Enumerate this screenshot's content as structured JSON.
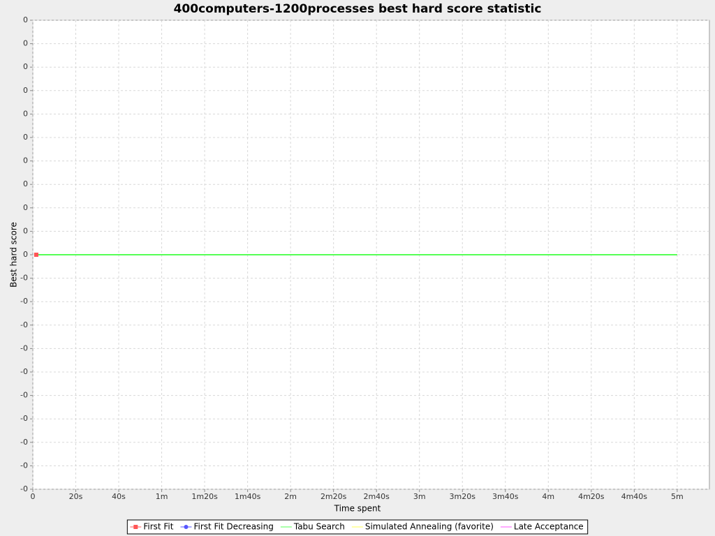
{
  "chart_data": {
    "type": "line",
    "title": "400computers-1200processes best hard score statistic",
    "x_label": "Time spent",
    "y_label": "Best hard score",
    "xlim": [
      0,
      315000
    ],
    "xticks": [
      0,
      {
        "value": 20000,
        "label": "20s"
      },
      {
        "value": 40000,
        "label": "40s"
      },
      {
        "value": 60000,
        "label": "1m"
      },
      {
        "value": 80000,
        "label": "1m20s"
      },
      {
        "value": 100000,
        "label": "1m40s"
      },
      {
        "value": 120000,
        "label": "2m"
      },
      {
        "value": 140000,
        "label": "2m20s"
      },
      {
        "value": 160000,
        "label": "2m40s"
      },
      {
        "value": 180000,
        "label": "3m"
      },
      {
        "value": 200000,
        "label": "3m20s"
      },
      {
        "value": 220000,
        "label": "3m40s"
      },
      {
        "value": 240000,
        "label": "4m"
      },
      {
        "value": 260000,
        "label": "4m20s"
      },
      {
        "value": 280000,
        "label": "4m40s"
      },
      {
        "value": 300000,
        "label": "5m"
      }
    ],
    "ylim": [
      -0.1,
      0.1
    ],
    "yticks": [
      {
        "value": 0.1,
        "label": "0"
      },
      {
        "value": 0.09,
        "label": "0"
      },
      {
        "value": 0.08,
        "label": "0"
      },
      {
        "value": 0.07,
        "label": "0"
      },
      {
        "value": 0.06,
        "label": "0"
      },
      {
        "value": 0.05,
        "label": "0"
      },
      {
        "value": 0.04,
        "label": "0"
      },
      {
        "value": 0.03,
        "label": "0"
      },
      {
        "value": 0.02,
        "label": "0"
      },
      {
        "value": 0.01,
        "label": "0"
      },
      0,
      {
        "value": -0.01,
        "label": "-0"
      },
      {
        "value": -0.02,
        "label": "-0"
      },
      {
        "value": -0.03,
        "label": "-0"
      },
      {
        "value": -0.04,
        "label": "-0"
      },
      {
        "value": -0.05,
        "label": "-0"
      },
      {
        "value": -0.06,
        "label": "-0"
      },
      {
        "value": -0.07,
        "label": "-0"
      },
      {
        "value": -0.08,
        "label": "-0"
      },
      {
        "value": -0.09,
        "label": "-0"
      },
      {
        "value": -0.1,
        "label": "-0"
      }
    ],
    "grid": true,
    "legend": "bottom",
    "series": [
      {
        "name": "First Fit",
        "color": "#ff5555",
        "marker": "square",
        "x": [
          1600
        ],
        "values": [
          0
        ]
      },
      {
        "name": "First Fit Decreasing",
        "color": "#5555ff",
        "marker": "circle",
        "x": [
          1600
        ],
        "values": [
          0
        ]
      },
      {
        "name": "Tabu Search",
        "color": "#55ff55",
        "marker": "none",
        "x": [
          1600,
          300000
        ],
        "values": [
          0,
          0
        ]
      },
      {
        "name": "Simulated Annealing (favorite)",
        "color": "#ffff55",
        "marker": "none",
        "x": [
          1600,
          300000
        ],
        "values": [
          0,
          0
        ]
      },
      {
        "name": "Late Acceptance",
        "color": "#ff55ff",
        "marker": "none",
        "x": [
          1600,
          300000
        ],
        "values": [
          0,
          0
        ]
      }
    ]
  }
}
